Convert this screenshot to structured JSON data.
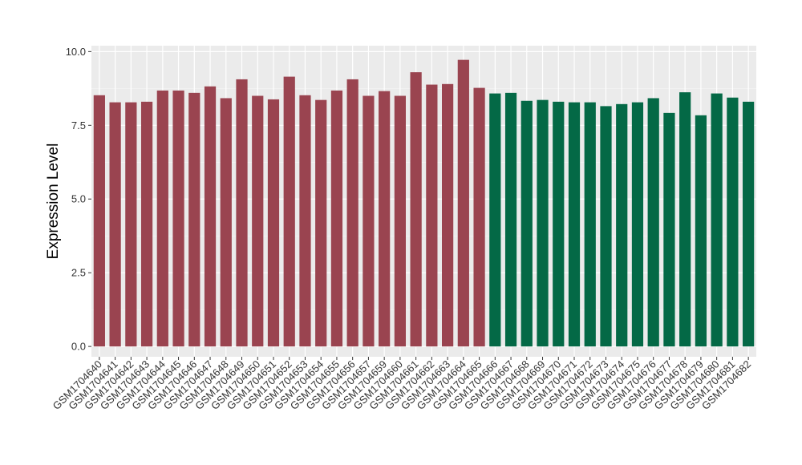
{
  "chart_data": {
    "type": "bar",
    "ylabel": "Expression Level",
    "xlabel": "",
    "ylim": [
      -0.35,
      10.2
    ],
    "yticks": [
      0.0,
      2.5,
      5.0,
      7.5,
      10.0
    ],
    "ytick_labels": [
      "0.0",
      "2.5",
      "5.0",
      "7.5",
      "10.0"
    ],
    "grid": true,
    "panel_background": "#ebebeb",
    "categories": [
      "GSM1704640",
      "GSM1704641",
      "GSM1704642",
      "GSM1704643",
      "GSM1704644",
      "GSM1704645",
      "GSM1704646",
      "GSM1704647",
      "GSM1704648",
      "GSM1704649",
      "GSM1704650",
      "GSM1704651",
      "GSM1704652",
      "GSM1704653",
      "GSM1704654",
      "GSM1704655",
      "GSM1704656",
      "GSM1704657",
      "GSM1704659",
      "GSM1704660",
      "GSM1704661",
      "GSM1704662",
      "GSM1704663",
      "GSM1704664",
      "GSM1704665",
      "GSM1704666",
      "GSM1704667",
      "GSM1704668",
      "GSM1704669",
      "GSM1704670",
      "GSM1704671",
      "GSM1704672",
      "GSM1704673",
      "GSM1704674",
      "GSM1704675",
      "GSM1704676",
      "GSM1704677",
      "GSM1704678",
      "GSM1704679",
      "GSM1704680",
      "GSM1704681",
      "GSM1704682"
    ],
    "values": [
      8.52,
      8.28,
      8.28,
      8.3,
      8.68,
      8.68,
      8.6,
      8.82,
      8.42,
      9.06,
      8.5,
      8.38,
      9.15,
      8.52,
      8.36,
      8.68,
      9.06,
      8.5,
      8.66,
      8.5,
      9.3,
      8.88,
      8.9,
      9.72,
      8.77,
      8.58,
      8.6,
      8.33,
      8.36,
      8.3,
      8.28,
      8.28,
      8.15,
      8.22,
      8.28,
      8.42,
      7.92,
      8.62,
      7.84,
      8.58,
      8.44,
      8.3
    ],
    "groups": [
      0,
      0,
      0,
      0,
      0,
      0,
      0,
      0,
      0,
      0,
      0,
      0,
      0,
      0,
      0,
      0,
      0,
      0,
      0,
      0,
      0,
      0,
      0,
      0,
      0,
      1,
      1,
      1,
      1,
      1,
      1,
      1,
      1,
      1,
      1,
      1,
      1,
      1,
      1,
      1,
      1,
      1
    ],
    "group_colors": [
      "#9a4450",
      "#046946"
    ]
  }
}
